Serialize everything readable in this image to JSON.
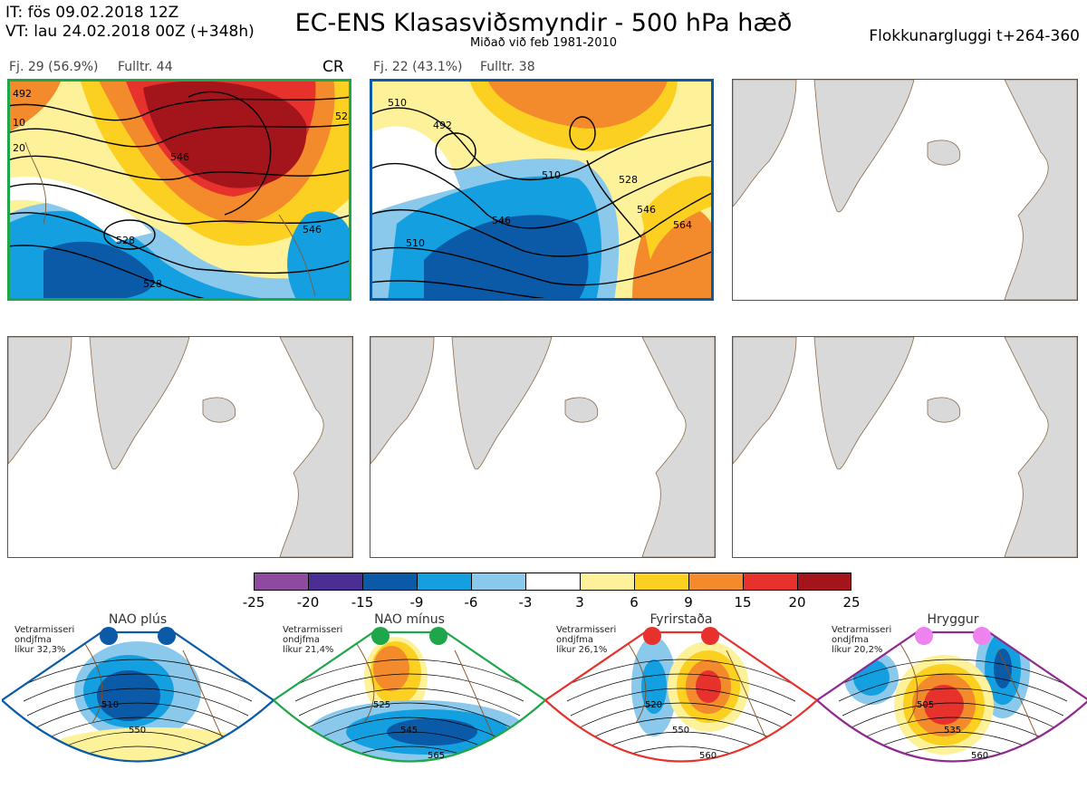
{
  "header": {
    "it_line": "IT: fös 09.02.2018 12Z",
    "vt_line": "VT: lau 24.02.2018 00Z  (+348h)",
    "title": "EC-ENS Klasasviðsmyndir - 500 hPa hæð",
    "subtitle": "Miðað við feb 1981-2010",
    "window": "Flokkunargluggi t+264-360"
  },
  "panels": [
    {
      "label_count": "Fj. 29 (56.9%)",
      "label_rep": "Fulltr. 44",
      "regime_tag": "CR",
      "frame_color": "#1fa64a",
      "contour_labels": [
        "492",
        "510",
        "520",
        "528",
        "546",
        "528",
        "546",
        "528",
        "546",
        "510"
      ]
    },
    {
      "label_count": "Fj. 22 (43.1%)",
      "label_rep": "Fulltr. 38",
      "regime_tag": "",
      "frame_color": "#0a5aa8",
      "contour_labels": [
        "510",
        "492",
        "510",
        "510",
        "528",
        "546",
        "546",
        "564",
        "510",
        "528",
        "546"
      ]
    }
  ],
  "colorbar": {
    "ticks": [
      "-25",
      "-20",
      "-15",
      "-9",
      "-6",
      "-3",
      "3",
      "6",
      "9",
      "15",
      "20",
      "25"
    ],
    "colors": [
      "#8e4a9e",
      "#4a2e94",
      "#0a5aa8",
      "#139fe0",
      "#8ac9ec",
      "#ffffff",
      "#fdf29a",
      "#fcd020",
      "#f38a2c",
      "#e6312c",
      "#a3151b"
    ]
  },
  "regimes": [
    {
      "name": "NAO plús",
      "note_line1": "Vetrarmisseri",
      "note_line2": "ondjfma",
      "note_line3": "líkur 32,3%",
      "color": "#0a5aa8",
      "labels": [
        "510",
        "550"
      ]
    },
    {
      "name": "NAO mínus",
      "note_line1": "Vetrarmisseri",
      "note_line2": "ondjfma",
      "note_line3": "líkur 21,4%",
      "color": "#1fa64a",
      "labels": [
        "525",
        "545",
        "565"
      ]
    },
    {
      "name": "Fyrirstaða",
      "note_line1": "Vetrarmisseri",
      "note_line2": "ondjfma",
      "note_line3": "líkur 26,1%",
      "color": "#e6312c",
      "labels": [
        "520",
        "550",
        "560"
      ]
    },
    {
      "name": "Hryggur",
      "note_line1": "Vetrarmisseri",
      "note_line2": "ondjfma",
      "note_line3": "líkur 20,2%",
      "color": "#8e2a8e",
      "labels": [
        "505",
        "535",
        "560"
      ]
    }
  ]
}
